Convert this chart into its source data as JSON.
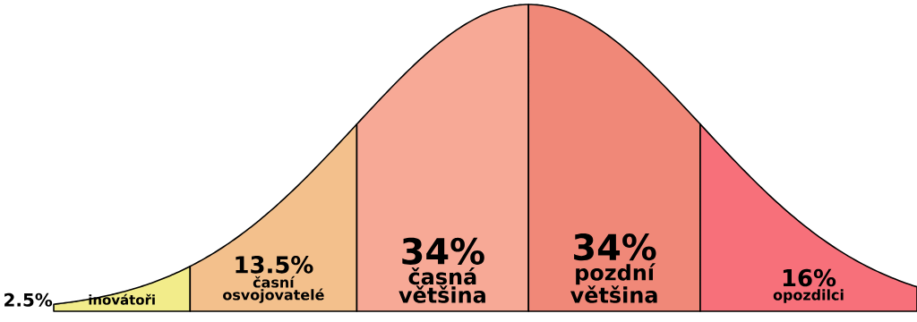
{
  "chart_data": {
    "type": "other",
    "categories": [
      "inovátoři",
      "časní osvojovatelé",
      "časná většina",
      "pozdní většina",
      "opozdilci"
    ],
    "values": [
      2.5,
      13.5,
      34,
      34,
      16
    ],
    "value_labels": [
      "2.5%",
      "13.5%",
      "34%",
      "34%",
      "16%"
    ],
    "colors": [
      "#f2ec8a",
      "#f3c08c",
      "#f7a996",
      "#f08878",
      "#f7707a"
    ]
  }
}
